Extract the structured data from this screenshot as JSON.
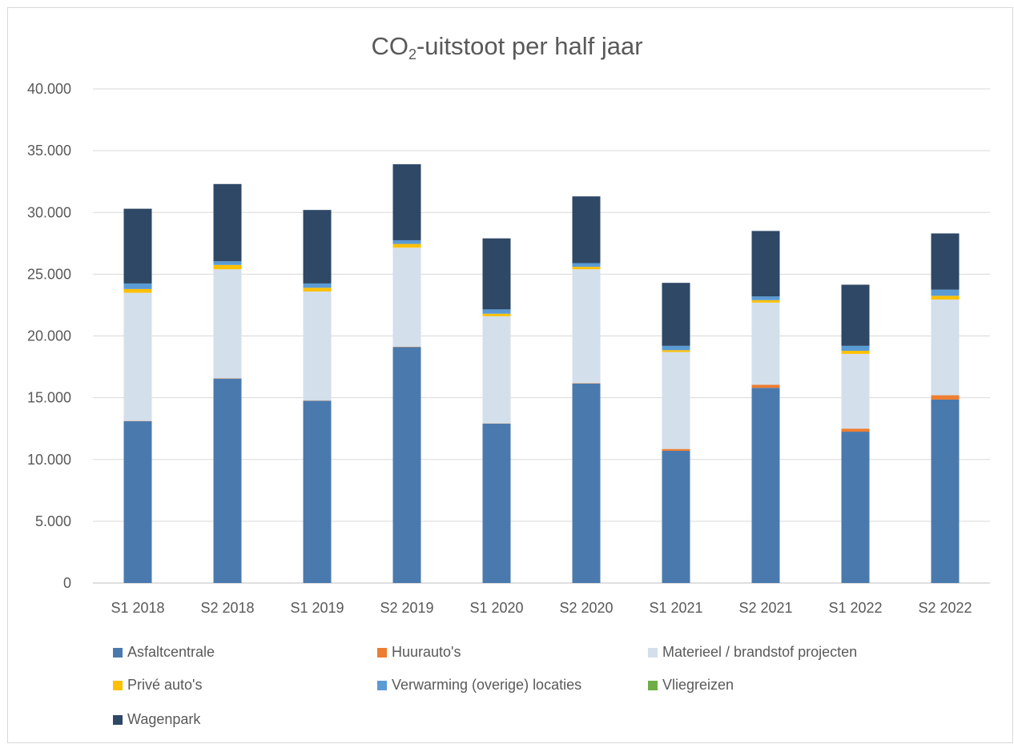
{
  "chart_data": {
    "type": "bar",
    "stacked": true,
    "title": "CO2-uitstoot per half jaar",
    "title_main": "CO",
    "title_sub": "2",
    "title_rest": "-uitstoot per half jaar",
    "categories": [
      "S1 2018",
      "S2 2018",
      "S1 2019",
      "S2 2019",
      "S1 2020",
      "S2 2020",
      "S1 2021",
      "S2 2021",
      "S1 2022",
      "S2 2022"
    ],
    "ylim": [
      0,
      40000
    ],
    "yticks": [
      0,
      5000,
      10000,
      15000,
      20000,
      25000,
      30000,
      35000,
      40000
    ],
    "ytick_labels": [
      "0",
      "5.000",
      "10.000",
      "15.000",
      "20.000",
      "25.000",
      "30.000",
      "35.000",
      "40.000"
    ],
    "grid": true,
    "legend_position": "bottom",
    "series": [
      {
        "name": "Asfaltcentrale",
        "color": "#4a7aad",
        "values": [
          13100,
          16550,
          14750,
          19100,
          12900,
          16150,
          10700,
          15800,
          12250,
          14850
        ]
      },
      {
        "name": "Huurauto's",
        "color": "#ed7d31",
        "values": [
          20,
          30,
          20,
          30,
          20,
          30,
          150,
          250,
          250,
          350
        ]
      },
      {
        "name": "Materieel / brandstof projecten",
        "color": "#d3dfeb",
        "values": [
          10380,
          8820,
          8830,
          8020,
          8680,
          9220,
          7850,
          6650,
          6050,
          7750
        ]
      },
      {
        "name": "Privé auto's",
        "color": "#ffc000",
        "values": [
          300,
          350,
          300,
          300,
          200,
          200,
          150,
          200,
          250,
          300
        ]
      },
      {
        "name": "Verwarming (overige) locaties",
        "color": "#5b9bd5",
        "values": [
          450,
          300,
          350,
          300,
          350,
          300,
          350,
          300,
          400,
          500
        ]
      },
      {
        "name": "Vliegreizen",
        "color": "#70ad47",
        "values": [
          0,
          0,
          0,
          0,
          0,
          0,
          0,
          0,
          0,
          0
        ]
      },
      {
        "name": "Wagenpark",
        "color": "#2e4866",
        "values": [
          6050,
          6250,
          5950,
          6150,
          5750,
          5400,
          5100,
          5300,
          4950,
          4550
        ]
      }
    ]
  }
}
